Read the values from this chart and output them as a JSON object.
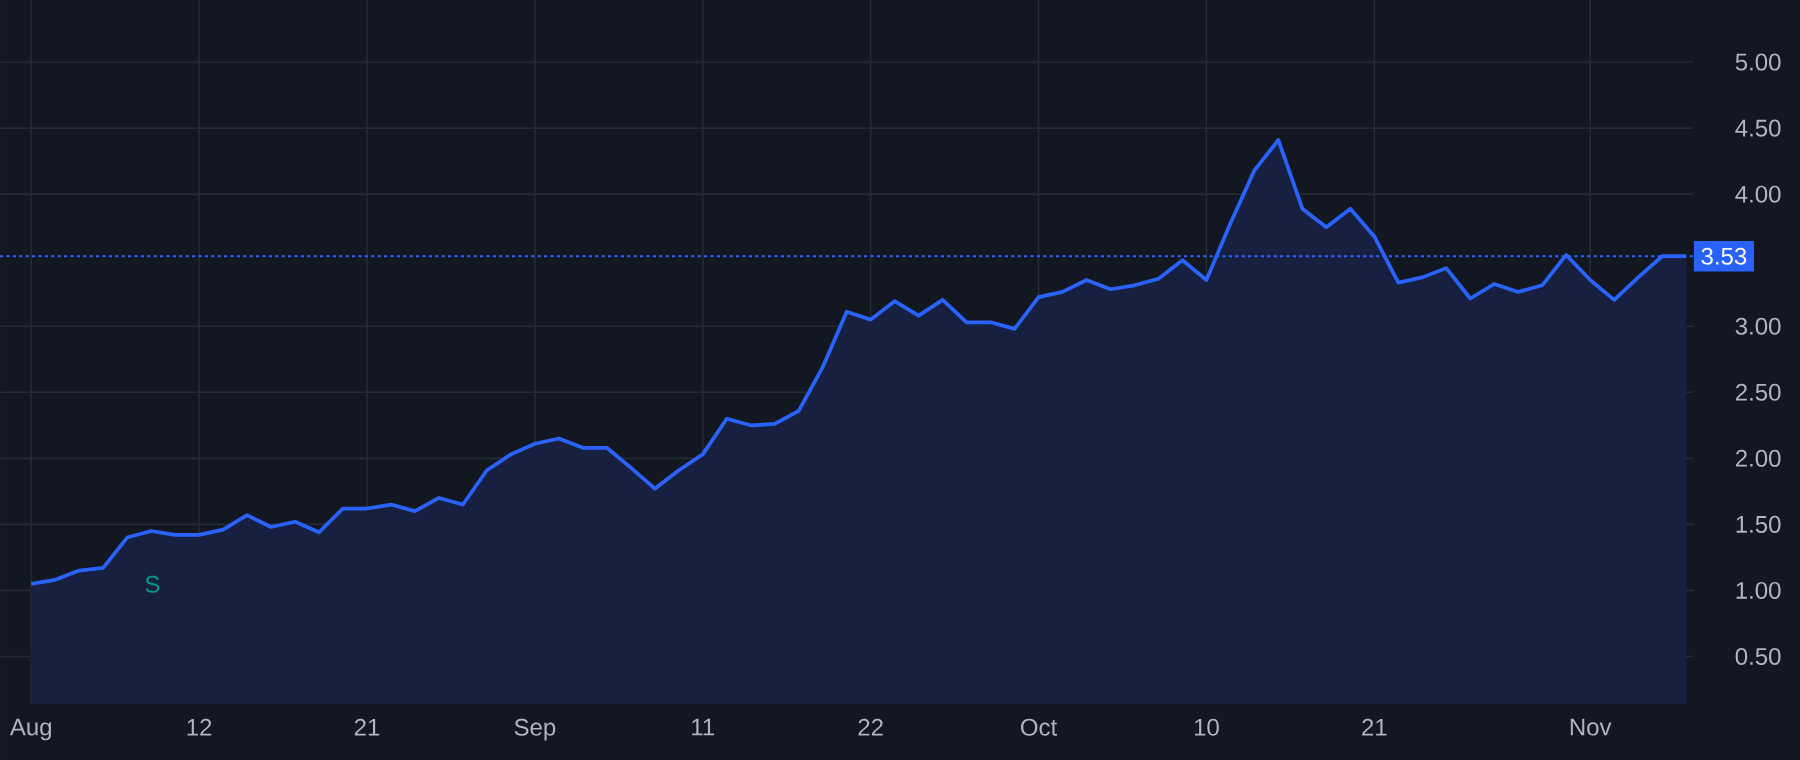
{
  "chart_data": {
    "type": "area",
    "color": "#2962ff",
    "categories": [
      "Aug",
      null,
      null,
      null,
      null,
      null,
      null,
      "12",
      null,
      null,
      null,
      null,
      null,
      null,
      "21",
      null,
      null,
      null,
      null,
      null,
      null,
      "Sep",
      null,
      null,
      null,
      null,
      null,
      null,
      "11",
      null,
      null,
      null,
      null,
      null,
      null,
      "22",
      null,
      null,
      null,
      null,
      null,
      null,
      "Oct",
      null,
      null,
      null,
      null,
      null,
      null,
      "10",
      null,
      null,
      null,
      null,
      null,
      null,
      "21",
      null,
      null,
      null,
      null,
      null,
      null,
      null,
      null,
      "Nov",
      null,
      null,
      null,
      null
    ],
    "values": [
      1.05,
      1.08,
      1.15,
      1.17,
      1.4,
      1.45,
      1.42,
      1.42,
      1.46,
      1.57,
      1.48,
      1.52,
      1.44,
      1.62,
      1.62,
      1.65,
      1.6,
      1.7,
      1.65,
      1.91,
      2.03,
      2.11,
      2.15,
      2.08,
      2.08,
      1.93,
      1.77,
      1.91,
      2.03,
      2.3,
      2.25,
      2.26,
      2.36,
      2.69,
      3.11,
      3.05,
      3.19,
      3.08,
      3.2,
      3.03,
      3.03,
      2.98,
      3.22,
      3.26,
      3.35,
      3.28,
      3.31,
      3.36,
      3.5,
      3.35,
      3.78,
      4.18,
      4.41,
      3.89,
      3.75,
      3.89,
      3.68,
      3.33,
      3.37,
      3.44,
      3.21,
      3.32,
      3.26,
      3.31,
      3.54,
      3.35,
      3.2,
      3.37,
      3.53,
      3.53
    ],
    "ylim": [
      0.14,
      5.47
    ],
    "yticks": [
      {
        "value": 0.5,
        "label": "0.50"
      },
      {
        "value": 1,
        "label": "1.00"
      },
      {
        "value": 1.5,
        "label": "1.50"
      },
      {
        "value": 2,
        "label": "2.00"
      },
      {
        "value": 2.5,
        "label": "2.50"
      },
      {
        "value": 3,
        "label": "3.00"
      },
      {
        "value": 4,
        "label": "4.00"
      },
      {
        "value": 4.5,
        "label": "4.50"
      },
      {
        "value": 5,
        "label": "5.00"
      }
    ],
    "grid": true,
    "ref_lines": [
      {
        "axis": "y",
        "value": 3.53,
        "label": "3.53",
        "color": "#2962ff",
        "line_style": "dotted"
      }
    ],
    "annotations": [
      "S"
    ]
  }
}
